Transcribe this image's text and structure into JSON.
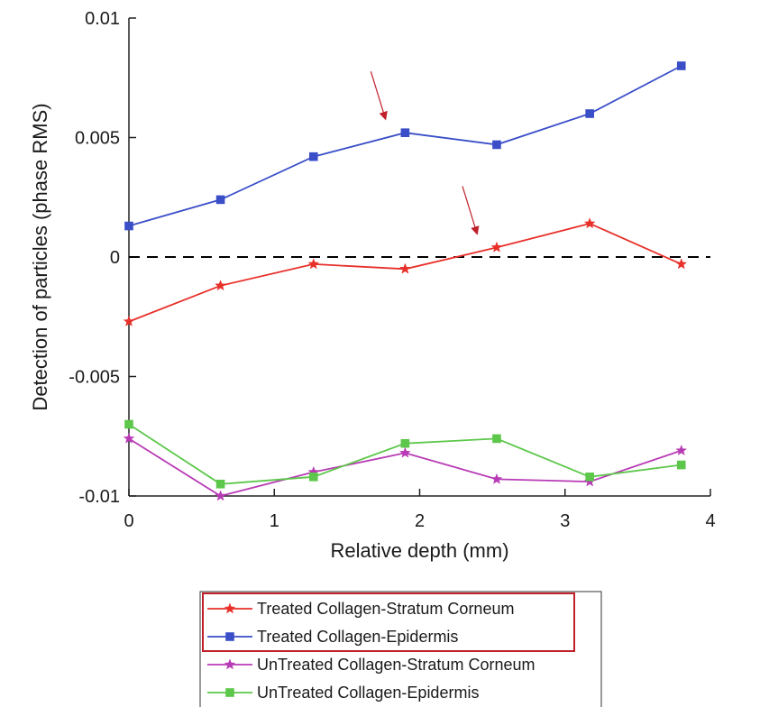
{
  "chart_data": {
    "type": "line",
    "xlabel": "Relative depth (mm)",
    "ylabel": "Detection of particles (phase RMS)",
    "xlim": [
      0,
      4
    ],
    "ylim": [
      -0.01,
      0.01
    ],
    "xticks": [
      0,
      1,
      2,
      3,
      4
    ],
    "xtick_labels": [
      "0",
      "1",
      "2",
      "3",
      "4"
    ],
    "yticks": [
      -0.01,
      -0.005,
      0,
      0.005,
      0.01
    ],
    "ytick_labels": [
      "-0.01",
      "-0.005",
      "0",
      "0.005",
      "0.01"
    ],
    "x": [
      0,
      0.63,
      1.27,
      1.9,
      2.53,
      3.17,
      3.8
    ],
    "reference_line": {
      "y": 0,
      "style": "dashed",
      "color": "#000000"
    },
    "series": [
      {
        "name": "Treated Collagen-Stratum Corneum",
        "color": "#e8302a",
        "marker": "star",
        "values": [
          -0.0027,
          -0.0012,
          -0.0003,
          -0.0005,
          0.0004,
          0.0014,
          -0.0003
        ]
      },
      {
        "name": "Treated Collagen-Epidermis",
        "color": "#3a4ec8",
        "marker": "square",
        "values": [
          0.0013,
          0.0024,
          0.0042,
          0.0052,
          0.0047,
          0.006,
          0.008
        ]
      },
      {
        "name": "UnTreated Collagen-Stratum Corneum",
        "color": "#b83bb5",
        "marker": "star",
        "values": [
          -0.0076,
          -0.01,
          -0.009,
          -0.0082,
          -0.0093,
          -0.0094,
          -0.0081
        ]
      },
      {
        "name": "UnTreated Collagen-Epidermis",
        "color": "#5cc74a",
        "marker": "square",
        "values": [
          -0.007,
          -0.0095,
          -0.0092,
          -0.0078,
          -0.0076,
          -0.0092,
          -0.0087
        ]
      }
    ],
    "annotations": [
      {
        "type": "arrow",
        "color": "#c0202a",
        "target_series": "Treated Collagen-Epidermis",
        "near_x": 1.9
      },
      {
        "type": "arrow",
        "color": "#c0202a",
        "target_series": "Treated Collagen-Stratum Corneum",
        "near_x": 2.53
      }
    ],
    "legend": {
      "position": "bottom",
      "highlighted_entries": [
        0,
        1
      ],
      "highlight_color": "#c0202a"
    },
    "grid": false
  }
}
